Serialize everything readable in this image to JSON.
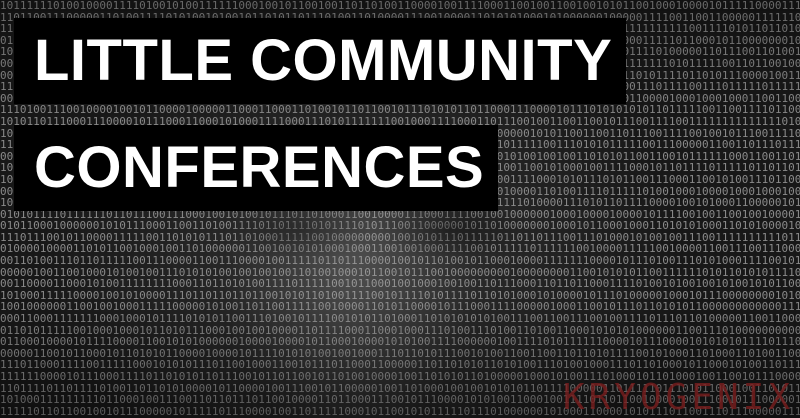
{
  "title": {
    "line1": "LITTLE COMMUNITY",
    "line2": "CONFERENCES"
  },
  "watermark": "KRYOGENIX",
  "colors": {
    "title_background": "#000000",
    "title_text": "#ffffff",
    "watermark": "#7a1e1e"
  }
}
